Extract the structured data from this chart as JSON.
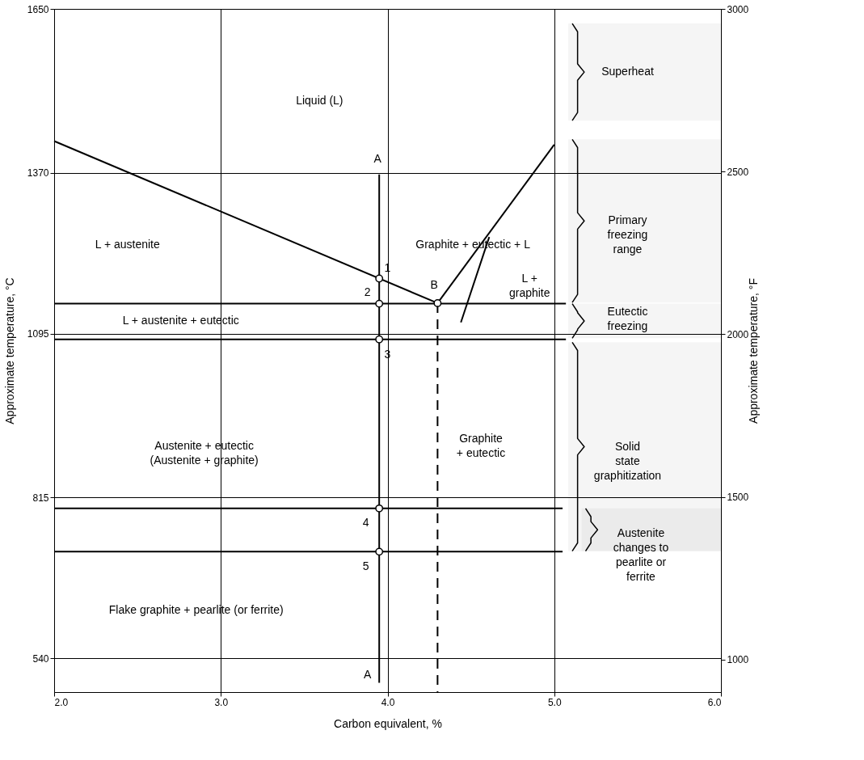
{
  "chart_data": {
    "type": "line",
    "xlabel": "Carbon equivalent, %",
    "ylabel": "Approximate temperature, °C",
    "y2label": "Approximate temperature, °F",
    "xlim": [
      2.0,
      6.0
    ],
    "xticks": [
      {
        "value": 2,
        "label": "2.0"
      },
      {
        "value": 3,
        "label": "3.0"
      },
      {
        "value": 4,
        "label": "4.0"
      },
      {
        "value": 5,
        "label": "5.0"
      },
      {
        "value": 6,
        "label": "6.0"
      }
    ],
    "ylim": [
      482,
      1650
    ],
    "yticks": [
      540,
      815,
      1095,
      1370,
      1650
    ],
    "y2lim": [
      900,
      3000
    ],
    "y2ticks": [
      1000,
      1500,
      2000,
      2500,
      3000
    ],
    "grid": true,
    "series": [
      {
        "color": "#000000",
        "x": [
          2.0,
          4.3
        ],
        "values": [
          1424,
          1147
        ]
      },
      {
        "color": "#000000",
        "x": [
          4.3,
          5.0
        ],
        "values": [
          1147,
          1418
        ]
      },
      {
        "color": "#000000",
        "x": [
          2.0,
          5.07
        ],
        "values": [
          1146,
          1146
        ]
      },
      {
        "color": "#000000",
        "x": [
          2.0,
          5.07
        ],
        "values": [
          1085,
          1085
        ]
      },
      {
        "color": "#000000",
        "x": [
          2.0,
          5.05
        ],
        "values": [
          796,
          796
        ]
      },
      {
        "color": "#000000",
        "x": [
          2.0,
          5.05
        ],
        "values": [
          722,
          722
        ]
      },
      {
        "color": "#000000",
        "x": [
          3.95,
          3.95
        ],
        "values": [
          1367,
          498
        ]
      },
      {
        "color": "#000000",
        "x": [
          4.3,
          4.3
        ],
        "values": [
          1147,
          482
        ],
        "line_style": "dashed"
      },
      {
        "color": "#000000",
        "x": [
          4.61,
          4.44
        ],
        "values": [
          1260,
          1114
        ]
      },
      {
        "type": "scatter",
        "marker": "circle",
        "color": "#000000",
        "x": [
          3.95,
          3.95,
          4.3,
          3.95,
          3.95,
          3.95
        ],
        "values": [
          1189,
          1146,
          1147,
          1085,
          796,
          722
        ]
      }
    ],
    "bands": [
      {
        "axis": "y",
        "from": 1459,
        "to": 1625,
        "label": "Superheat",
        "color": "#000000"
      },
      {
        "axis": "y",
        "from": 1148,
        "to": 1427,
        "label": "Primary\nfreezing\nrange",
        "color": "#000000"
      },
      {
        "axis": "y",
        "from": 1087,
        "to": 1146,
        "label": "Eutectic\nfreezing",
        "color": "#000000"
      },
      {
        "axis": "y",
        "from": 723,
        "to": 1080,
        "label": "Solid\nstate\ngraphitization",
        "color": "#000000"
      },
      {
        "axis": "y",
        "from": 723,
        "to": 796,
        "label": "Austenite\nchanges to\npearlite or\nferrite",
        "color": "#000000"
      }
    ],
    "annotations": [
      "Liquid (L)",
      "L + austenite",
      "Graphite + eutectic + L",
      "L +\ngraphite",
      "L + austenite + eutectic",
      "Graphite\n+ eutectic",
      "Austenite + eutectic\n(Austenite + graphite)",
      "Flake graphite + pearlite (or ferrite)",
      "A",
      "1",
      "2",
      "B",
      "3",
      "4",
      "5",
      "A"
    ]
  }
}
